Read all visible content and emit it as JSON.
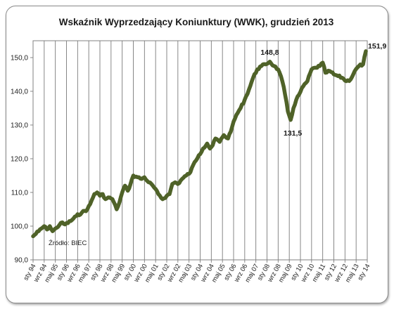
{
  "chart_data": {
    "type": "line",
    "title": "Wskaźnik Wyprzedzający Koniunktury (WWK), grudzień 2013",
    "source_note": "Źródło: BIEC",
    "xlabel": "",
    "ylabel": "",
    "ylim": [
      90,
      155
    ],
    "yticks": [
      "90,0",
      "100,0",
      "110,0",
      "120,0",
      "130,0",
      "140,0",
      "150,0"
    ],
    "yticks_values": [
      90,
      100,
      110,
      120,
      130,
      140,
      150
    ],
    "grid": "vertical",
    "x_start": "1994-01",
    "x_tick_labels": [
      "sty 94",
      "wrz 94",
      "maj 95",
      "sty 96",
      "wrz 96",
      "maj 97",
      "sty 98",
      "wrz 98",
      "maj 99",
      "sty 00",
      "wrz 00",
      "maj 01",
      "sty 02",
      "wrz 02",
      "maj 03",
      "sty 04",
      "wrz 04",
      "maj 05",
      "sty 06",
      "wrz 06",
      "maj 07",
      "sty 08",
      "wrz 08",
      "maj 09",
      "sty 10",
      "wrz 10",
      "maj 11",
      "sty 12",
      "wrz 12",
      "maj 13",
      "sty 14"
    ],
    "annotations": [
      {
        "text": "148,8",
        "x": "2008-03",
        "y": 148.8,
        "placement": "above"
      },
      {
        "text": "131,5",
        "x": "2009-06",
        "y": 131.5,
        "placement": "below"
      },
      {
        "text": "151,9",
        "x": "2013-12",
        "y": 151.9,
        "placement": "right"
      }
    ],
    "color": "#4f6228",
    "series": [
      {
        "name": "",
        "points": [
          [
            "1994-01",
            97.0
          ],
          [
            "1994-05",
            98.5
          ],
          [
            "1994-09",
            100.0
          ],
          [
            "1994-11",
            99.0
          ],
          [
            "1995-01",
            100.0
          ],
          [
            "1995-03",
            98.5
          ],
          [
            "1995-06",
            99.5
          ],
          [
            "1995-09",
            101.0
          ],
          [
            "1995-12",
            100.5
          ],
          [
            "1996-04",
            101.5
          ],
          [
            "1996-08",
            103.0
          ],
          [
            "1996-12",
            104.0
          ],
          [
            "1997-04",
            105.0
          ],
          [
            "1997-06",
            106.5
          ],
          [
            "1997-09",
            109.5
          ],
          [
            "1997-11",
            110.0
          ],
          [
            "1998-01",
            109.0
          ],
          [
            "1998-03",
            109.5
          ],
          [
            "1998-05",
            108.0
          ],
          [
            "1998-08",
            108.5
          ],
          [
            "1998-10",
            108.0
          ],
          [
            "1999-01",
            105.0
          ],
          [
            "1999-03",
            107.0
          ],
          [
            "1999-05",
            110.0
          ],
          [
            "1999-07",
            112.0
          ],
          [
            "1999-09",
            110.5
          ],
          [
            "1999-11",
            112.5
          ],
          [
            "2000-01",
            115.0
          ],
          [
            "2000-04",
            114.5
          ],
          [
            "2000-07",
            114.0
          ],
          [
            "2000-09",
            114.5
          ],
          [
            "2000-12",
            113.0
          ],
          [
            "2001-03",
            112.0
          ],
          [
            "2001-07",
            109.5
          ],
          [
            "2001-10",
            108.0
          ],
          [
            "2002-01",
            109.0
          ],
          [
            "2002-03",
            109.5
          ],
          [
            "2002-05",
            112.5
          ],
          [
            "2002-07",
            113.0
          ],
          [
            "2002-09",
            112.5
          ],
          [
            "2002-12",
            114.0
          ],
          [
            "2003-03",
            115.0
          ],
          [
            "2003-06",
            116.0
          ],
          [
            "2003-09",
            119.0
          ],
          [
            "2003-12",
            121.0
          ],
          [
            "2004-03",
            123.0
          ],
          [
            "2004-06",
            124.5
          ],
          [
            "2004-08",
            123.0
          ],
          [
            "2004-10",
            124.0
          ],
          [
            "2004-12",
            126.0
          ],
          [
            "2005-03",
            125.0
          ],
          [
            "2005-06",
            127.0
          ],
          [
            "2005-09",
            126.0
          ],
          [
            "2005-12",
            129.5
          ],
          [
            "2006-03",
            133.0
          ],
          [
            "2006-06",
            135.0
          ],
          [
            "2006-09",
            137.5
          ],
          [
            "2006-12",
            140.5
          ],
          [
            "2007-03",
            144.0
          ],
          [
            "2007-06",
            146.5
          ],
          [
            "2007-09",
            147.5
          ],
          [
            "2007-12",
            148.0
          ],
          [
            "2008-03",
            148.8
          ],
          [
            "2008-06",
            147.5
          ],
          [
            "2008-09",
            146.5
          ],
          [
            "2008-12",
            143.0
          ],
          [
            "2009-02",
            139.0
          ],
          [
            "2009-04",
            134.0
          ],
          [
            "2009-06",
            131.5
          ],
          [
            "2009-08",
            135.0
          ],
          [
            "2009-10",
            137.5
          ],
          [
            "2009-12",
            139.0
          ],
          [
            "2010-03",
            141.5
          ],
          [
            "2010-06",
            143.0
          ],
          [
            "2010-09",
            146.5
          ],
          [
            "2010-12",
            147.0
          ],
          [
            "2011-03",
            147.5
          ],
          [
            "2011-05",
            148.5
          ],
          [
            "2011-07",
            145.5
          ],
          [
            "2011-10",
            146.0
          ],
          [
            "2012-01",
            145.0
          ],
          [
            "2012-04",
            144.5
          ],
          [
            "2012-07",
            144.0
          ],
          [
            "2012-10",
            143.0
          ],
          [
            "2013-01",
            143.5
          ],
          [
            "2013-04",
            146.0
          ],
          [
            "2013-07",
            147.5
          ],
          [
            "2013-10",
            148.0
          ],
          [
            "2013-12",
            151.9
          ]
        ]
      }
    ]
  }
}
